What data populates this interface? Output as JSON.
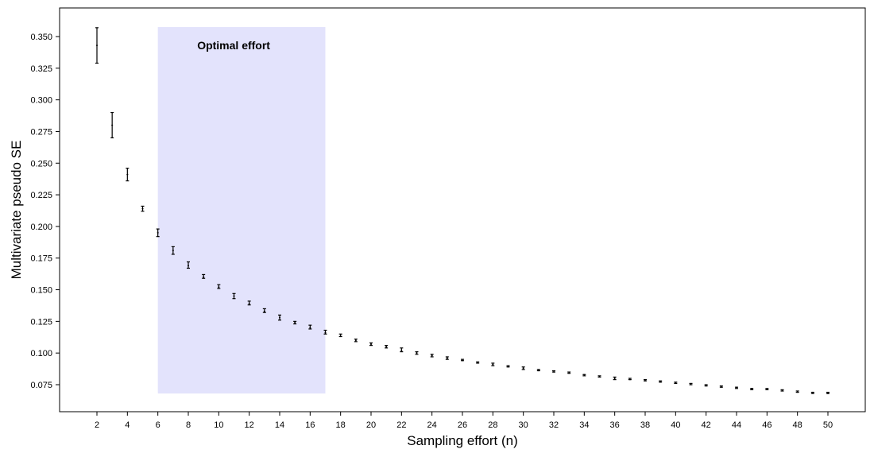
{
  "chart_data": {
    "type": "scatter",
    "xlabel": "Sampling effort (n)",
    "ylabel": "Multivariate pseudo SE",
    "xlim": [
      0,
      52
    ],
    "ylim": [
      0.065,
      0.36
    ],
    "xticks": [
      2,
      4,
      6,
      8,
      10,
      12,
      14,
      16,
      18,
      20,
      22,
      24,
      26,
      28,
      30,
      32,
      34,
      36,
      38,
      40,
      42,
      44,
      46,
      48,
      50
    ],
    "yticks": [
      "0.075",
      "0.100",
      "0.125",
      "0.150",
      "0.175",
      "0.200",
      "0.225",
      "0.250",
      "0.275",
      "0.300",
      "0.325",
      "0.350"
    ],
    "grid": false,
    "highlight": {
      "x_from": 6,
      "x_to": 17,
      "y_from": 0.068,
      "y_to": 0.3575,
      "color": "#e3e3fc",
      "label": "Optimal effort"
    },
    "series": [
      {
        "x": [
          2,
          3,
          4,
          5,
          6,
          7,
          8,
          9,
          10,
          11,
          12,
          13,
          14,
          15,
          16,
          17,
          18,
          19,
          20,
          21,
          22,
          23,
          24,
          25,
          26,
          27,
          28,
          29,
          30,
          31,
          32,
          33,
          34,
          35,
          36,
          37,
          38,
          39,
          40,
          41,
          42,
          43,
          44,
          45,
          46,
          47,
          48,
          49,
          50
        ],
        "y": [
          0.343,
          0.28,
          0.241,
          0.214,
          0.195,
          0.181,
          0.169,
          0.16,
          0.152,
          0.145,
          0.139,
          0.133,
          0.128,
          0.124,
          0.12,
          0.116,
          0.113,
          0.11,
          0.107,
          0.105,
          0.102,
          0.1,
          0.098,
          0.096,
          0.094,
          0.092,
          0.091,
          0.089,
          0.088,
          0.086,
          0.085,
          0.084,
          0.083,
          0.081,
          0.08,
          0.079,
          0.078,
          0.077,
          0.076,
          0.075,
          0.074,
          0.073,
          0.073,
          0.072,
          0.071,
          0.07,
          0.069,
          0.069,
          0.068
        ],
        "y_low": [
          0.329,
          0.27,
          0.236,
          0.212,
          0.192,
          0.178,
          0.167,
          0.159,
          0.151,
          0.143,
          0.138,
          0.132,
          0.126,
          0.123,
          0.119,
          0.115,
          0.113,
          0.109,
          0.106,
          0.104,
          0.101,
          0.099,
          0.097,
          0.095,
          0.094,
          0.092,
          0.09,
          0.089,
          0.087,
          0.086,
          0.085,
          0.084,
          0.082,
          0.081,
          0.079,
          0.079,
          0.078,
          0.077,
          0.076,
          0.075,
          0.074,
          0.073,
          0.072,
          0.071,
          0.071,
          0.07,
          0.069,
          0.068,
          0.068
        ],
        "y_high": [
          0.357,
          0.29,
          0.246,
          0.216,
          0.198,
          0.184,
          0.172,
          0.162,
          0.154,
          0.147,
          0.141,
          0.135,
          0.13,
          0.125,
          0.122,
          0.118,
          0.115,
          0.111,
          0.108,
          0.106,
          0.104,
          0.101,
          0.099,
          0.097,
          0.095,
          0.093,
          0.092,
          0.09,
          0.089,
          0.087,
          0.086,
          0.085,
          0.083,
          0.082,
          0.081,
          0.08,
          0.079,
          0.078,
          0.077,
          0.076,
          0.075,
          0.074,
          0.073,
          0.072,
          0.072,
          0.071,
          0.07,
          0.069,
          0.069
        ]
      }
    ]
  }
}
